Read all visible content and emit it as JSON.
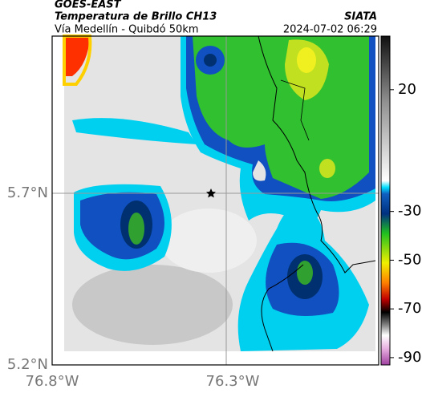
{
  "header": {
    "title": "GOES-EAST",
    "subtitle": "Temperatura de Brillo CH13",
    "route": "Vía Medellín - Quibdó 50km",
    "source": "SIATA",
    "datetime": "2024-07-02 06:29"
  },
  "map": {
    "lat_labels": [
      "5.7°N",
      "5.2°N"
    ],
    "lon_labels": [
      "76.8°W",
      "76.3°W"
    ]
  },
  "colorbar": {
    "range": [
      -93,
      42
    ],
    "ticks": [
      20,
      -30,
      -50,
      -70,
      -90
    ]
  }
}
